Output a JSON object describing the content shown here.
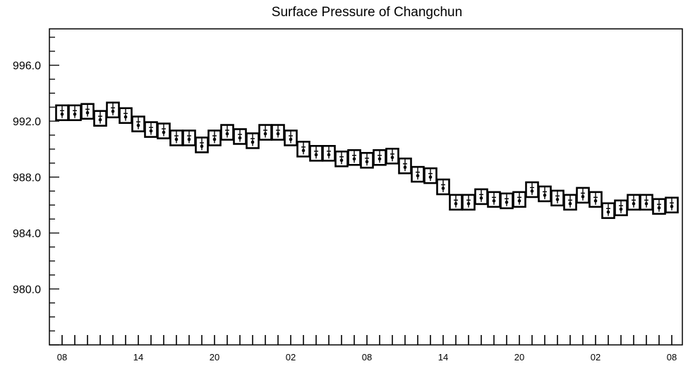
{
  "chart_data": {
    "type": "scatter",
    "title": "Surface Pressure of Changchun",
    "xlabel": "",
    "ylabel": "",
    "ylim": [
      976.0,
      998.6
    ],
    "y_ticks": [
      "980.0",
      "984.0",
      "988.0",
      "992.0",
      "996.0"
    ],
    "x_ticks": [
      "08",
      "14",
      "20",
      "02",
      "08",
      "14",
      "20",
      "02",
      "08"
    ],
    "x_tick_steps": [
      0,
      6,
      12,
      18,
      24,
      30,
      36,
      42,
      48
    ],
    "x_range": [
      0,
      48.9
    ],
    "grid": false,
    "series": [
      {
        "values": [
          992.6,
          992.6,
          992.7,
          992.2,
          992.8,
          992.4,
          991.8,
          991.4,
          991.3,
          990.8,
          990.8,
          990.3,
          990.8,
          991.2,
          990.9,
          990.6,
          991.2,
          991.2,
          990.8,
          990.0,
          989.7,
          989.7,
          989.3,
          989.4,
          989.2,
          989.4,
          989.5,
          988.8,
          988.2,
          988.1,
          987.3,
          986.2,
          986.2,
          986.6,
          986.4,
          986.3,
          986.4,
          987.1,
          986.8,
          986.5,
          986.2,
          986.7,
          986.4,
          985.6,
          985.8,
          986.2,
          986.2,
          985.9,
          986.0
        ]
      }
    ]
  }
}
